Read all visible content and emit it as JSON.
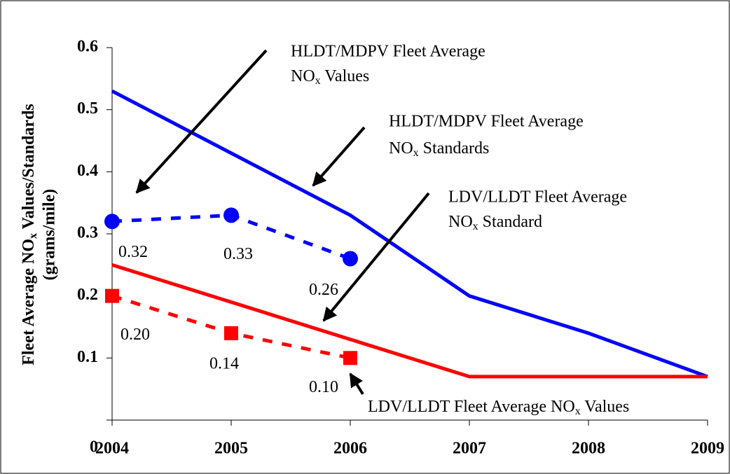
{
  "chart_data": {
    "type": "line",
    "y_label": [
      "Fleet Average NO",
      "x",
      " Values/Standards"
    ],
    "y_label_2": "(grams/mile)",
    "x": [
      2004,
      2005,
      2006,
      2007,
      2008,
      2009
    ],
    "xlim": [
      2004,
      2009
    ],
    "xticks": [
      2004,
      2005,
      2006,
      2007,
      2008,
      2009
    ],
    "ylim": [
      0,
      0.6
    ],
    "yticks": [
      0,
      0.1,
      0.2,
      0.3,
      0.4,
      0.5,
      0.6
    ],
    "series": [
      {
        "color": "#0000ff",
        "style": "solid",
        "values": [
          0.53,
          0.43,
          0.33,
          0.2,
          0.14,
          0.07
        ]
      },
      {
        "color": "#ff0000",
        "style": "solid",
        "values": [
          0.25,
          0.19,
          0.13,
          0.07,
          0.07,
          0.07
        ]
      },
      {
        "color": "#0000ff",
        "style": "dashed",
        "marker": "circle",
        "values": [
          0.32,
          0.33,
          0.26,
          null,
          null,
          null
        ],
        "value_labels": [
          "0.32",
          "0.33",
          "0.26",
          null,
          null,
          null
        ]
      },
      {
        "color": "#ff0000",
        "style": "dashed",
        "marker": "square",
        "values": [
          0.2,
          0.14,
          0.1,
          null,
          null,
          null
        ],
        "value_labels": [
          "0.20",
          "0.14",
          "0.10",
          null,
          null,
          null
        ]
      }
    ],
    "annotations": [
      {
        "line1": "HLDT/MDPV Fleet Average",
        "line2": [
          "NO",
          "x",
          " Values"
        ]
      },
      {
        "line1": "HLDT/MDPV Fleet Average",
        "line2": [
          "NO",
          "x",
          " Standards"
        ]
      },
      {
        "line1": "LDV/LLDT Fleet Average",
        "line2": [
          "NO",
          "x",
          " Standard"
        ]
      },
      {
        "line1": [
          "LDV/LLDT Fleet Average NO",
          "x",
          " Values"
        ]
      }
    ]
  }
}
